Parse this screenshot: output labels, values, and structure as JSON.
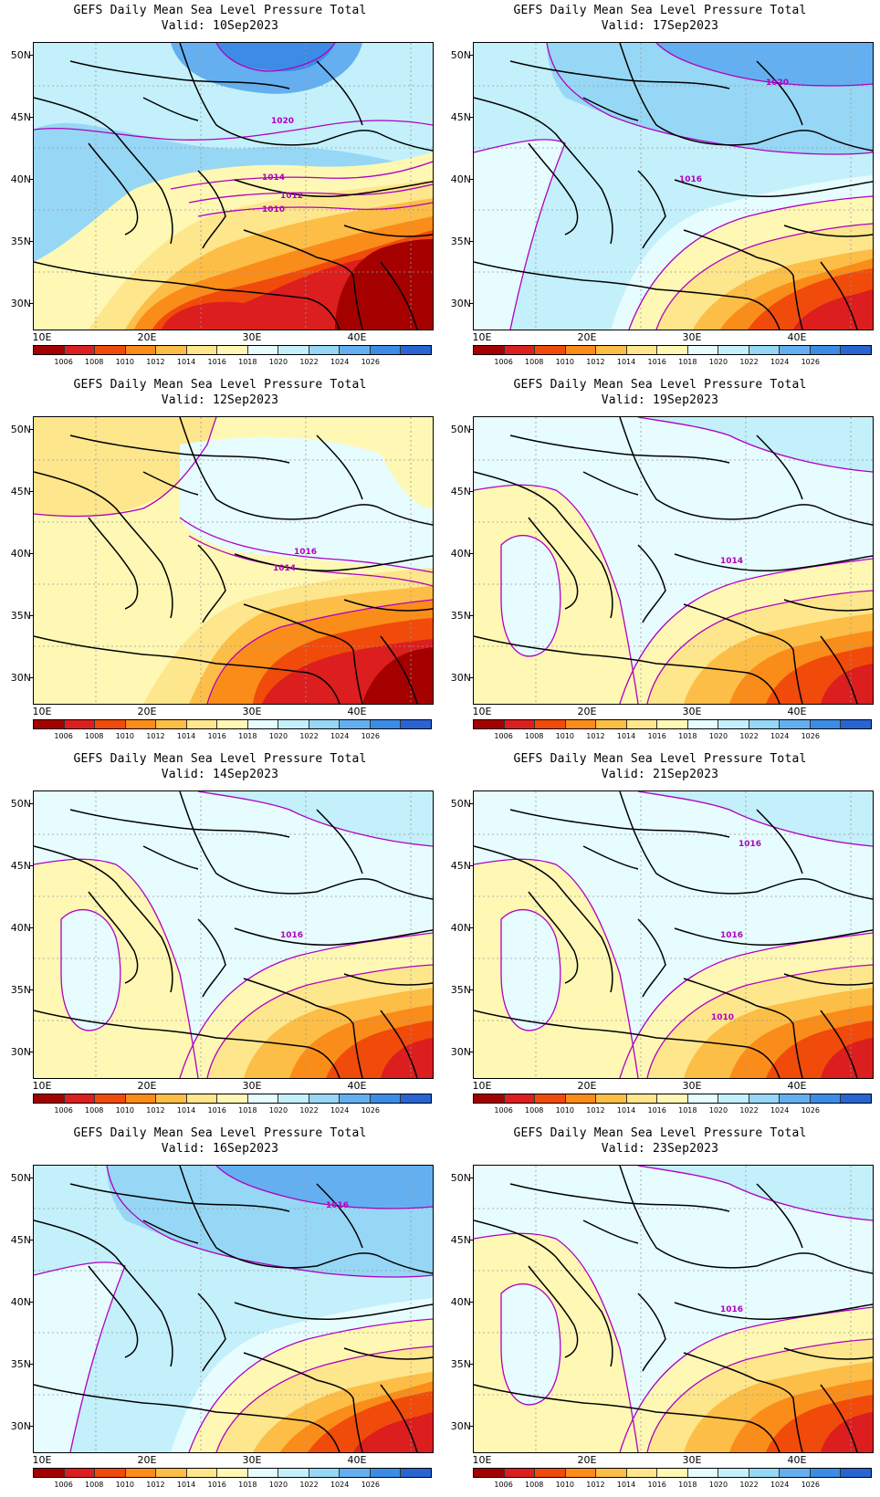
{
  "colorbar": {
    "labels": [
      "1006",
      "1008",
      "1010",
      "1012",
      "1014",
      "1016",
      "1018",
      "1020",
      "1022",
      "1024",
      "1026"
    ],
    "colors": [
      "#a50000",
      "#dc1e1e",
      "#f04b0a",
      "#fa8c19",
      "#fcbe46",
      "#fde68c",
      "#fff8b4",
      "#e6fcff",
      "#c3f0fa",
      "#96d7f5",
      "#64aff0",
      "#3c8ce6",
      "#2864d2"
    ]
  },
  "axes": {
    "lat_labels": [
      "50N",
      "45N",
      "40N",
      "35N",
      "30N"
    ],
    "lon_labels": [
      "10E",
      "20E",
      "30E",
      "40E"
    ]
  },
  "panels": [
    {
      "title": "GEFS Daily Mean Sea Level Pressure Total",
      "valid": "Valid: 10Sep2023",
      "scenario": "deep-low",
      "contour_labels": [
        "1020",
        "1014",
        "1012",
        "1010"
      ]
    },
    {
      "title": "GEFS Daily Mean Sea Level Pressure Total",
      "valid": "Valid: 17Sep2023",
      "scenario": "high-north",
      "contour_labels": [
        "1020",
        "1016"
      ]
    },
    {
      "title": "GEFS Daily Mean Sea Level Pressure Total",
      "valid": "Valid: 12Sep2023",
      "scenario": "warm",
      "contour_labels": [
        "1016",
        "1014"
      ]
    },
    {
      "title": "GEFS Daily Mean Sea Level Pressure Total",
      "valid": "Valid: 19Sep2023",
      "scenario": "moderate",
      "contour_labels": [
        "1014"
      ]
    },
    {
      "title": "GEFS Daily Mean Sea Level Pressure Total",
      "valid": "Valid: 14Sep2023",
      "scenario": "moderate",
      "contour_labels": [
        "1016"
      ]
    },
    {
      "title": "GEFS Daily Mean Sea Level Pressure Total",
      "valid": "Valid: 21Sep2023",
      "scenario": "moderate",
      "contour_labels": [
        "1016",
        "1016",
        "1010"
      ]
    },
    {
      "title": "GEFS Daily Mean Sea Level Pressure Total",
      "valid": "Valid: 16Sep2023",
      "scenario": "high-north",
      "contour_labels": [
        "1016"
      ]
    },
    {
      "title": "GEFS Daily Mean Sea Level Pressure Total",
      "valid": "Valid: 23Sep2023",
      "scenario": "moderate",
      "contour_labels": [
        "1016"
      ]
    }
  ]
}
